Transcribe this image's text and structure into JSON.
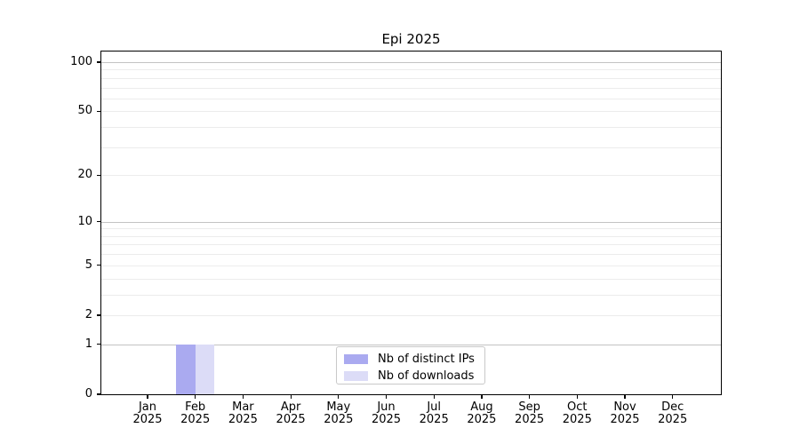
{
  "title": "Epi 2025",
  "chart_data": {
    "type": "bar",
    "title": "Epi 2025",
    "months": [
      "Jan",
      "Feb",
      "Mar",
      "Apr",
      "May",
      "Jun",
      "Jul",
      "Aug",
      "Sep",
      "Oct",
      "Nov",
      "Dec"
    ],
    "year_label": "2025",
    "series": [
      {
        "name": "Nb of distinct IPs",
        "color": "#aaaaf0",
        "values": [
          0,
          1,
          0,
          0,
          0,
          0,
          0,
          0,
          0,
          0,
          0,
          0
        ]
      },
      {
        "name": "Nb of downloads",
        "color": "#dcdcf7",
        "values": [
          0,
          1,
          0,
          0,
          0,
          0,
          0,
          0,
          0,
          0,
          0,
          0
        ]
      }
    ],
    "y_scale": "log1p",
    "ylim": [
      0,
      116
    ],
    "y_ticks": [
      0,
      1,
      2,
      5,
      10,
      20,
      50,
      100
    ],
    "y_major_gridlines": [
      1,
      10,
      100
    ],
    "y_minor_gridlines": [
      2,
      3,
      4,
      5,
      6,
      7,
      8,
      9,
      20,
      30,
      40,
      50,
      60,
      70,
      80,
      90
    ],
    "grid": "horizontal",
    "legend_position": "bottom-center",
    "colors": {
      "axis": "#000000",
      "major_grid": "#c3c3c3",
      "minor_grid": "#ececec",
      "legend_border": "#c9c9c9",
      "background": "#ffffff"
    }
  }
}
